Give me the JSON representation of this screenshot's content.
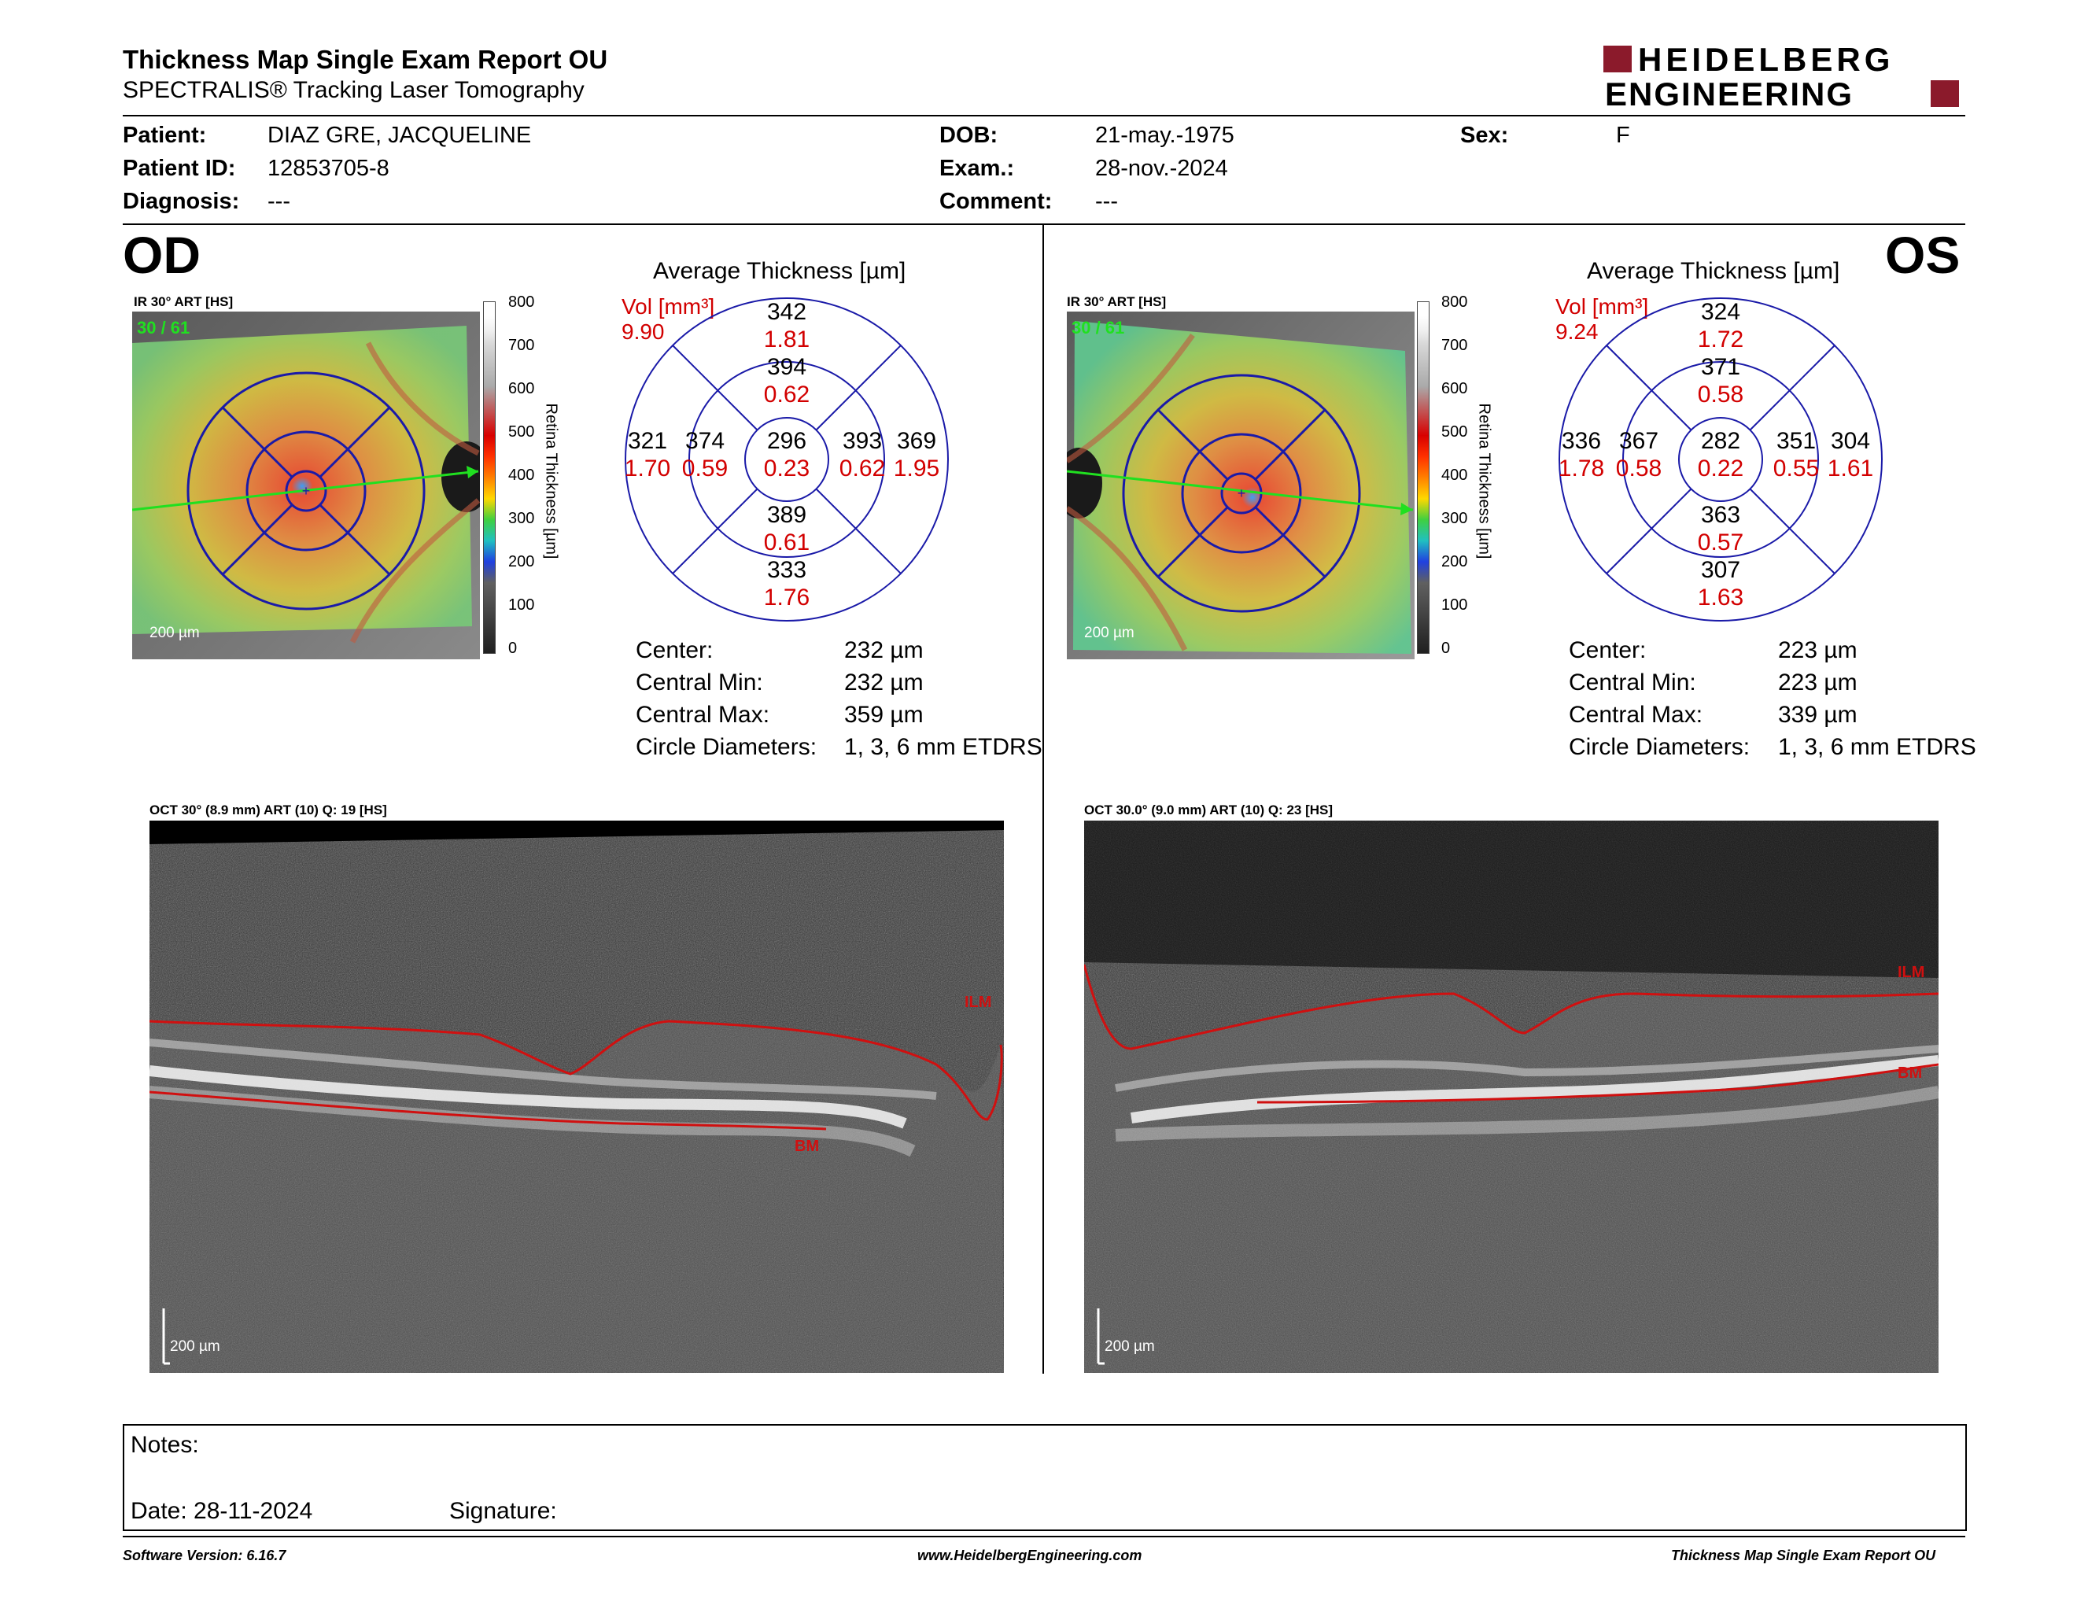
{
  "report": {
    "title": "Thickness Map Single Exam Report OU",
    "subtitle": "SPECTRALIS® Tracking Laser Tomography",
    "logo_line1": "HEIDELBERG",
    "logo_line2": "ENGINEERING"
  },
  "patient": {
    "patient_label": "Patient:",
    "patient_value": "DIAZ GRE, JACQUELINE",
    "id_label": "Patient ID:",
    "id_value": "12853705-8",
    "diagnosis_label": "Diagnosis:",
    "diagnosis_value": "---",
    "dob_label": "DOB:",
    "dob_value": "21-may.-1975",
    "exam_label": "Exam.:",
    "exam_value": "28-nov.-2024",
    "comment_label": "Comment:",
    "comment_value": "---",
    "sex_label": "Sex:",
    "sex_value": "F"
  },
  "scale": {
    "title": "Retina  Thickness [µm]",
    "ticks": [
      "800",
      "700",
      "600",
      "500",
      "400",
      "300",
      "200",
      "100",
      "0"
    ]
  },
  "od": {
    "eye": "OD",
    "ir_caption": "IR 30° ART [HS]",
    "ir_counter": "30 / 61",
    "ir_scale": "200 µm",
    "avg_title": "Average Thickness [µm]",
    "vol_label": "Vol [mm³]",
    "vol_value": "9.90",
    "etdrs": {
      "center": {
        "t": "296",
        "v": "0.23"
      },
      "inner_sup": {
        "t": "394",
        "v": "0.62"
      },
      "inner_inf": {
        "t": "389",
        "v": "0.61"
      },
      "inner_left": {
        "t": "374",
        "v": "0.59"
      },
      "inner_right": {
        "t": "393",
        "v": "0.62"
      },
      "outer_sup": {
        "t": "342",
        "v": "1.81"
      },
      "outer_inf": {
        "t": "333",
        "v": "1.76"
      },
      "outer_left": {
        "t": "321",
        "v": "1.70"
      },
      "outer_right": {
        "t": "369",
        "v": "1.95"
      }
    },
    "stats": [
      {
        "label": "Center:",
        "value": "232 µm"
      },
      {
        "label": "Central Min:",
        "value": "232 µm"
      },
      {
        "label": "Central Max:",
        "value": "359 µm"
      },
      {
        "label": "Circle Diameters:",
        "value": "1, 3, 6 mm ETDRS"
      }
    ],
    "oct_caption": "OCT 30° (8.9 mm) ART (10) Q: 19 [HS]",
    "oct_scale": "200 µm",
    "ilm": "ILM",
    "bm": "BM"
  },
  "os": {
    "eye": "OS",
    "ir_caption": "IR 30° ART [HS]",
    "ir_counter": "30 / 61",
    "ir_scale": "200 µm",
    "avg_title": "Average Thickness [µm]",
    "vol_label": "Vol [mm³]",
    "vol_value": "9.24",
    "etdrs": {
      "center": {
        "t": "282",
        "v": "0.22"
      },
      "inner_sup": {
        "t": "371",
        "v": "0.58"
      },
      "inner_inf": {
        "t": "363",
        "v": "0.57"
      },
      "inner_left": {
        "t": "367",
        "v": "0.58"
      },
      "inner_right": {
        "t": "351",
        "v": "0.55"
      },
      "outer_sup": {
        "t": "324",
        "v": "1.72"
      },
      "outer_inf": {
        "t": "307",
        "v": "1.63"
      },
      "outer_left": {
        "t": "336",
        "v": "1.78"
      },
      "outer_right": {
        "t": "304",
        "v": "1.61"
      }
    },
    "stats": [
      {
        "label": "Center:",
        "value": "223 µm"
      },
      {
        "label": "Central Min:",
        "value": "223 µm"
      },
      {
        "label": "Central Max:",
        "value": "339 µm"
      },
      {
        "label": "Circle Diameters:",
        "value": "1, 3, 6 mm ETDRS"
      }
    ],
    "oct_caption": "OCT 30.0° (9.0 mm) ART (10) Q: 23 [HS]",
    "oct_scale": "200 µm",
    "ilm": "ILM",
    "bm": "BM"
  },
  "notes": {
    "notes_label": "Notes:",
    "date_label": "Date: 28-11-2024",
    "signature_label": "Signature:"
  },
  "footer": {
    "left": "Software Version: 6.16.7",
    "center": "www.HeidelbergEngineering.com",
    "right": "Thickness Map Single Exam Report OU"
  },
  "colors": {
    "brand": "#8b1a2b",
    "etdrs_grid": "#1a1aa8",
    "volume_text": "#d20000",
    "layer_line": "#d01010"
  }
}
